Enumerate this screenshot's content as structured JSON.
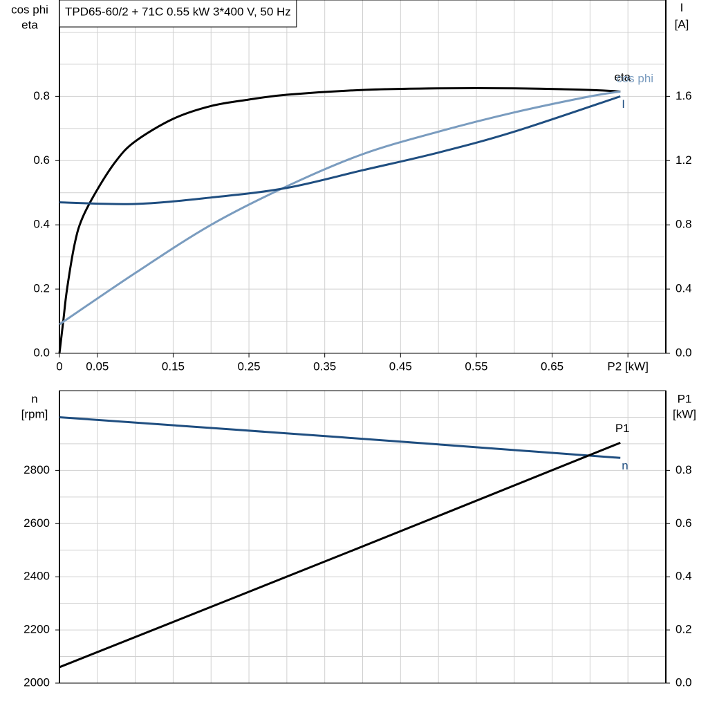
{
  "chart_data": [
    {
      "type": "line",
      "title": "TPD65-60/2 + 71C   0.55 kW   3*400 V, 50 Hz",
      "ylabel": [
        "cos phi",
        "eta"
      ],
      "y2label": [
        "I",
        "[A]"
      ],
      "xlim": [
        0,
        0.8
      ],
      "xticks": [
        0,
        0.05,
        0.15,
        0.25,
        0.35,
        0.45,
        0.55,
        0.65,
        {
          "value": 0.75,
          "label": "P2 [kW]"
        }
      ],
      "x_gridlines": [
        0.05,
        0.1,
        0.15,
        0.2,
        0.25,
        0.3,
        0.35,
        0.4,
        0.45,
        0.5,
        0.55,
        0.6,
        0.65,
        0.7,
        0.75
      ],
      "ylim": [
        0,
        1.1
      ],
      "yticks": [
        {
          "value": 0,
          "label": "0.0"
        },
        0.2,
        0.4,
        0.6,
        0.8
      ],
      "y_gridlines": [
        0.1,
        0.2,
        0.3,
        0.4,
        0.5,
        0.6,
        0.7,
        0.8,
        0.9,
        1.0
      ],
      "y2lim": [
        0,
        2.2
      ],
      "y2ticks": [
        {
          "value": 0,
          "label": "0.0"
        },
        0.4,
        0.8,
        1.2,
        1.6
      ],
      "series": [
        {
          "name": "eta",
          "color": "#000000",
          "x": [
            0,
            0.005,
            0.01,
            0.02,
            0.03,
            0.05,
            0.075,
            0.1,
            0.15,
            0.2,
            0.25,
            0.3,
            0.4,
            0.5,
            0.6,
            0.7,
            0.74
          ],
          "values": [
            0,
            0.1,
            0.2,
            0.34,
            0.42,
            0.51,
            0.6,
            0.66,
            0.73,
            0.77,
            0.79,
            0.805,
            0.82,
            0.825,
            0.825,
            0.82,
            0.815
          ]
        },
        {
          "name": "cos phi",
          "color": "#7a9cbf",
          "x": [
            0,
            0.1,
            0.2,
            0.3,
            0.4,
            0.5,
            0.6,
            0.7,
            0.74
          ],
          "values": [
            0.09,
            0.25,
            0.4,
            0.52,
            0.62,
            0.69,
            0.75,
            0.8,
            0.815
          ]
        },
        {
          "name": "I",
          "color": "#1f4e80",
          "axis": "y2",
          "x": [
            0,
            0.1,
            0.2,
            0.3,
            0.4,
            0.5,
            0.6,
            0.74
          ],
          "values": [
            0.94,
            0.93,
            0.97,
            1.03,
            1.14,
            1.25,
            1.38,
            1.6
          ]
        }
      ]
    },
    {
      "type": "line",
      "ylabel": [
        "n",
        "[rpm]"
      ],
      "y2label": [
        "P1",
        "[kW]"
      ],
      "xlim": [
        0,
        0.8
      ],
      "x_gridlines": [
        0.05,
        0.1,
        0.15,
        0.2,
        0.25,
        0.3,
        0.35,
        0.4,
        0.45,
        0.5,
        0.55,
        0.6,
        0.65,
        0.7,
        0.75
      ],
      "ylim": [
        2000,
        3100
      ],
      "yticks": [
        2000,
        2200,
        2400,
        2600,
        2800
      ],
      "y_gridlines": [
        2100,
        2200,
        2300,
        2400,
        2500,
        2600,
        2700,
        2800,
        2900,
        3000
      ],
      "y2lim": [
        0,
        1.1
      ],
      "y2ticks": [
        {
          "value": 0,
          "label": "0.0"
        },
        0.2,
        0.4,
        0.6,
        0.8
      ],
      "series": [
        {
          "name": "n",
          "color": "#1f4e80",
          "x": [
            0,
            0.37,
            0.74
          ],
          "values": [
            3000,
            2925,
            2847
          ]
        },
        {
          "name": "P1",
          "color": "#000000",
          "axis": "y2",
          "x": [
            0,
            0.37,
            0.74
          ],
          "values": [
            0.06,
            0.48,
            0.904
          ]
        }
      ]
    }
  ]
}
